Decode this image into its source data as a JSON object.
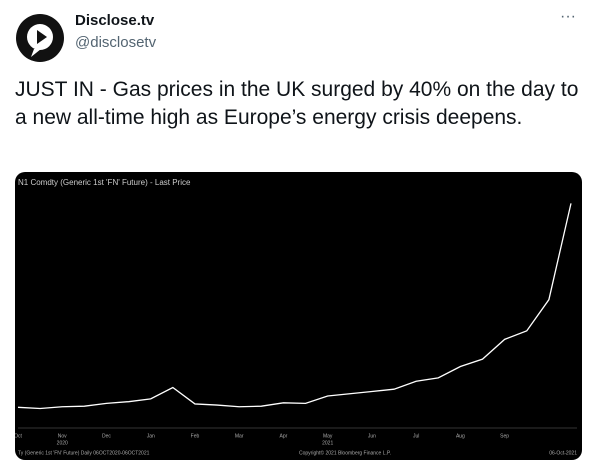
{
  "header": {
    "name": "Disclose.tv",
    "handle": "@disclosetv",
    "menu": "···"
  },
  "tweet": {
    "text": "JUST IN - Gas prices in the UK surged by 40% on the day to a new all-time high as Europe’s energy crisis deepens."
  },
  "chart_data": {
    "type": "line",
    "title": "N1 Comdty (Generic 1st 'FN' Future) - Last Price",
    "footer_left": "Ty (Generic 1st 'FN' Future) Daily 06OCT2020-06OCT2021",
    "footer_center": "Copyright© 2021 Bloomberg Finance L.P.",
    "footer_right": "06-Oct-2021",
    "categories": [
      "Oct",
      null,
      "Nov",
      null,
      "Dec",
      null,
      "Jan",
      null,
      "Feb",
      null,
      "Mar",
      null,
      "Apr",
      null,
      "May",
      null,
      "Jun",
      null,
      "Jul",
      null,
      "Aug",
      null,
      "Sep",
      null,
      null,
      null
    ],
    "sublabels": [
      null,
      null,
      "2020",
      null,
      null,
      null,
      null,
      null,
      null,
      null,
      null,
      null,
      null,
      null,
      "2021",
      null,
      null,
      null,
      null,
      null,
      null,
      null,
      null,
      null,
      null,
      null
    ],
    "series": [
      {
        "color": "#ffffff",
        "values": [
          40,
          38,
          41,
          42,
          47,
          50,
          55,
          75,
          46,
          44,
          41,
          42,
          48,
          47,
          60,
          64,
          68,
          72,
          86,
          92,
          112,
          125,
          160,
          175,
          230,
          400
        ]
      }
    ],
    "ylim": [
      0,
      420
    ]
  }
}
